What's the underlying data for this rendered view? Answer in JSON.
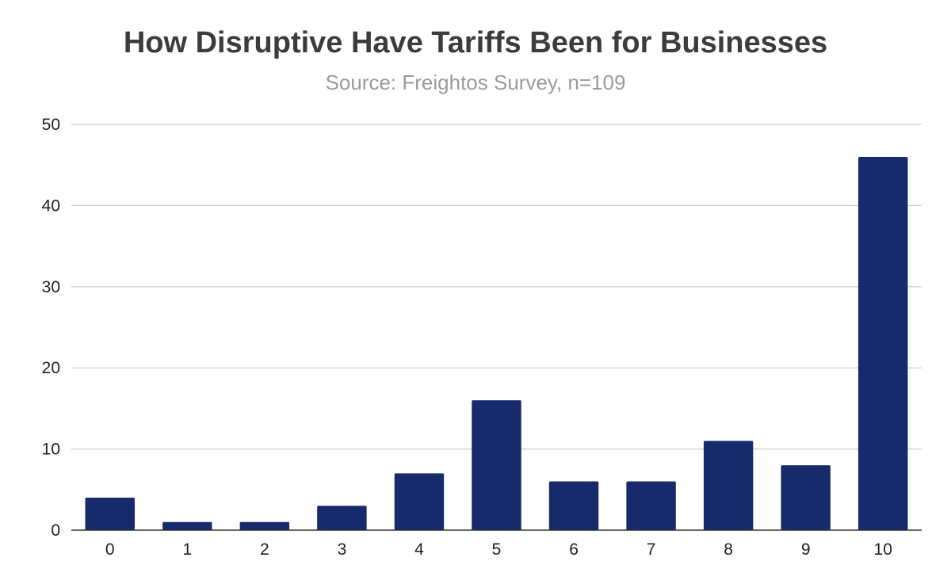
{
  "chart_data": {
    "type": "bar",
    "title": "How Disruptive Have Tariffs Been for Businesses",
    "subtitle": "Source: Freightos Survey, n=109",
    "xlabel": "",
    "ylabel": "",
    "categories": [
      "0",
      "1",
      "2",
      "3",
      "4",
      "5",
      "6",
      "7",
      "8",
      "9",
      "10"
    ],
    "values": [
      4,
      1,
      1,
      3,
      7,
      16,
      6,
      6,
      11,
      8,
      46
    ],
    "ylim": [
      0,
      50
    ],
    "yticks": [
      "0",
      "10",
      "20",
      "30",
      "40",
      "50"
    ],
    "grid": true,
    "legend": "none",
    "colors": {
      "bar": "#172a6b",
      "grid": "#cccccc",
      "axis": "#333333"
    }
  }
}
